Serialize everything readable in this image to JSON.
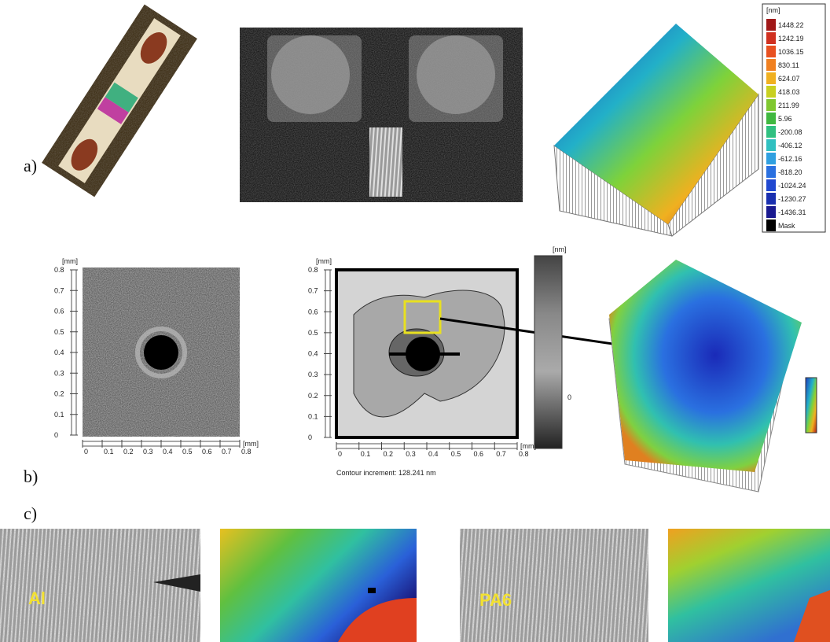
{
  "labels": {
    "a": "a)",
    "b": "b)",
    "c": "c)"
  },
  "legend": {
    "unit": "[nm]",
    "entries": [
      "1448.22",
      "1242.19",
      "1036.15",
      "830.11",
      "624.07",
      "418.03",
      "211.99",
      "5.96",
      "-200.08",
      "-406.12",
      "-612.16",
      "-818.20",
      "-1024.24",
      "-1230.27",
      "-1436.31"
    ],
    "mask": "Mask"
  },
  "panel_b1": {
    "unit_y": "[mm]",
    "unit_x": "[mm]",
    "yticks": [
      "0.8",
      "0.7",
      "0.6",
      "0.5",
      "0.4",
      "0.3",
      "0.2",
      "0.1",
      "0"
    ],
    "xticks": [
      "0",
      "0.1",
      "0.2",
      "0.3",
      "0.4",
      "0.5",
      "0.6",
      "0.7",
      "0.8"
    ]
  },
  "panel_b2": {
    "unit_y": "[mm]",
    "unit_x": "[mm]",
    "yticks": [
      "0.8",
      "0.7",
      "0.6",
      "0.5",
      "0.4",
      "0.3",
      "0.2",
      "0.1",
      "0"
    ],
    "xticks": [
      "0",
      "0.1",
      "0.2",
      "0.3",
      "0.4",
      "0.5",
      "0.6",
      "0.7",
      "0.8"
    ],
    "caption": "Contour increment: 128.241 nm",
    "bar_unit": "[nm]",
    "bar_zero": "0"
  },
  "panel_c": {
    "left": "Al",
    "right": "PA6"
  }
}
